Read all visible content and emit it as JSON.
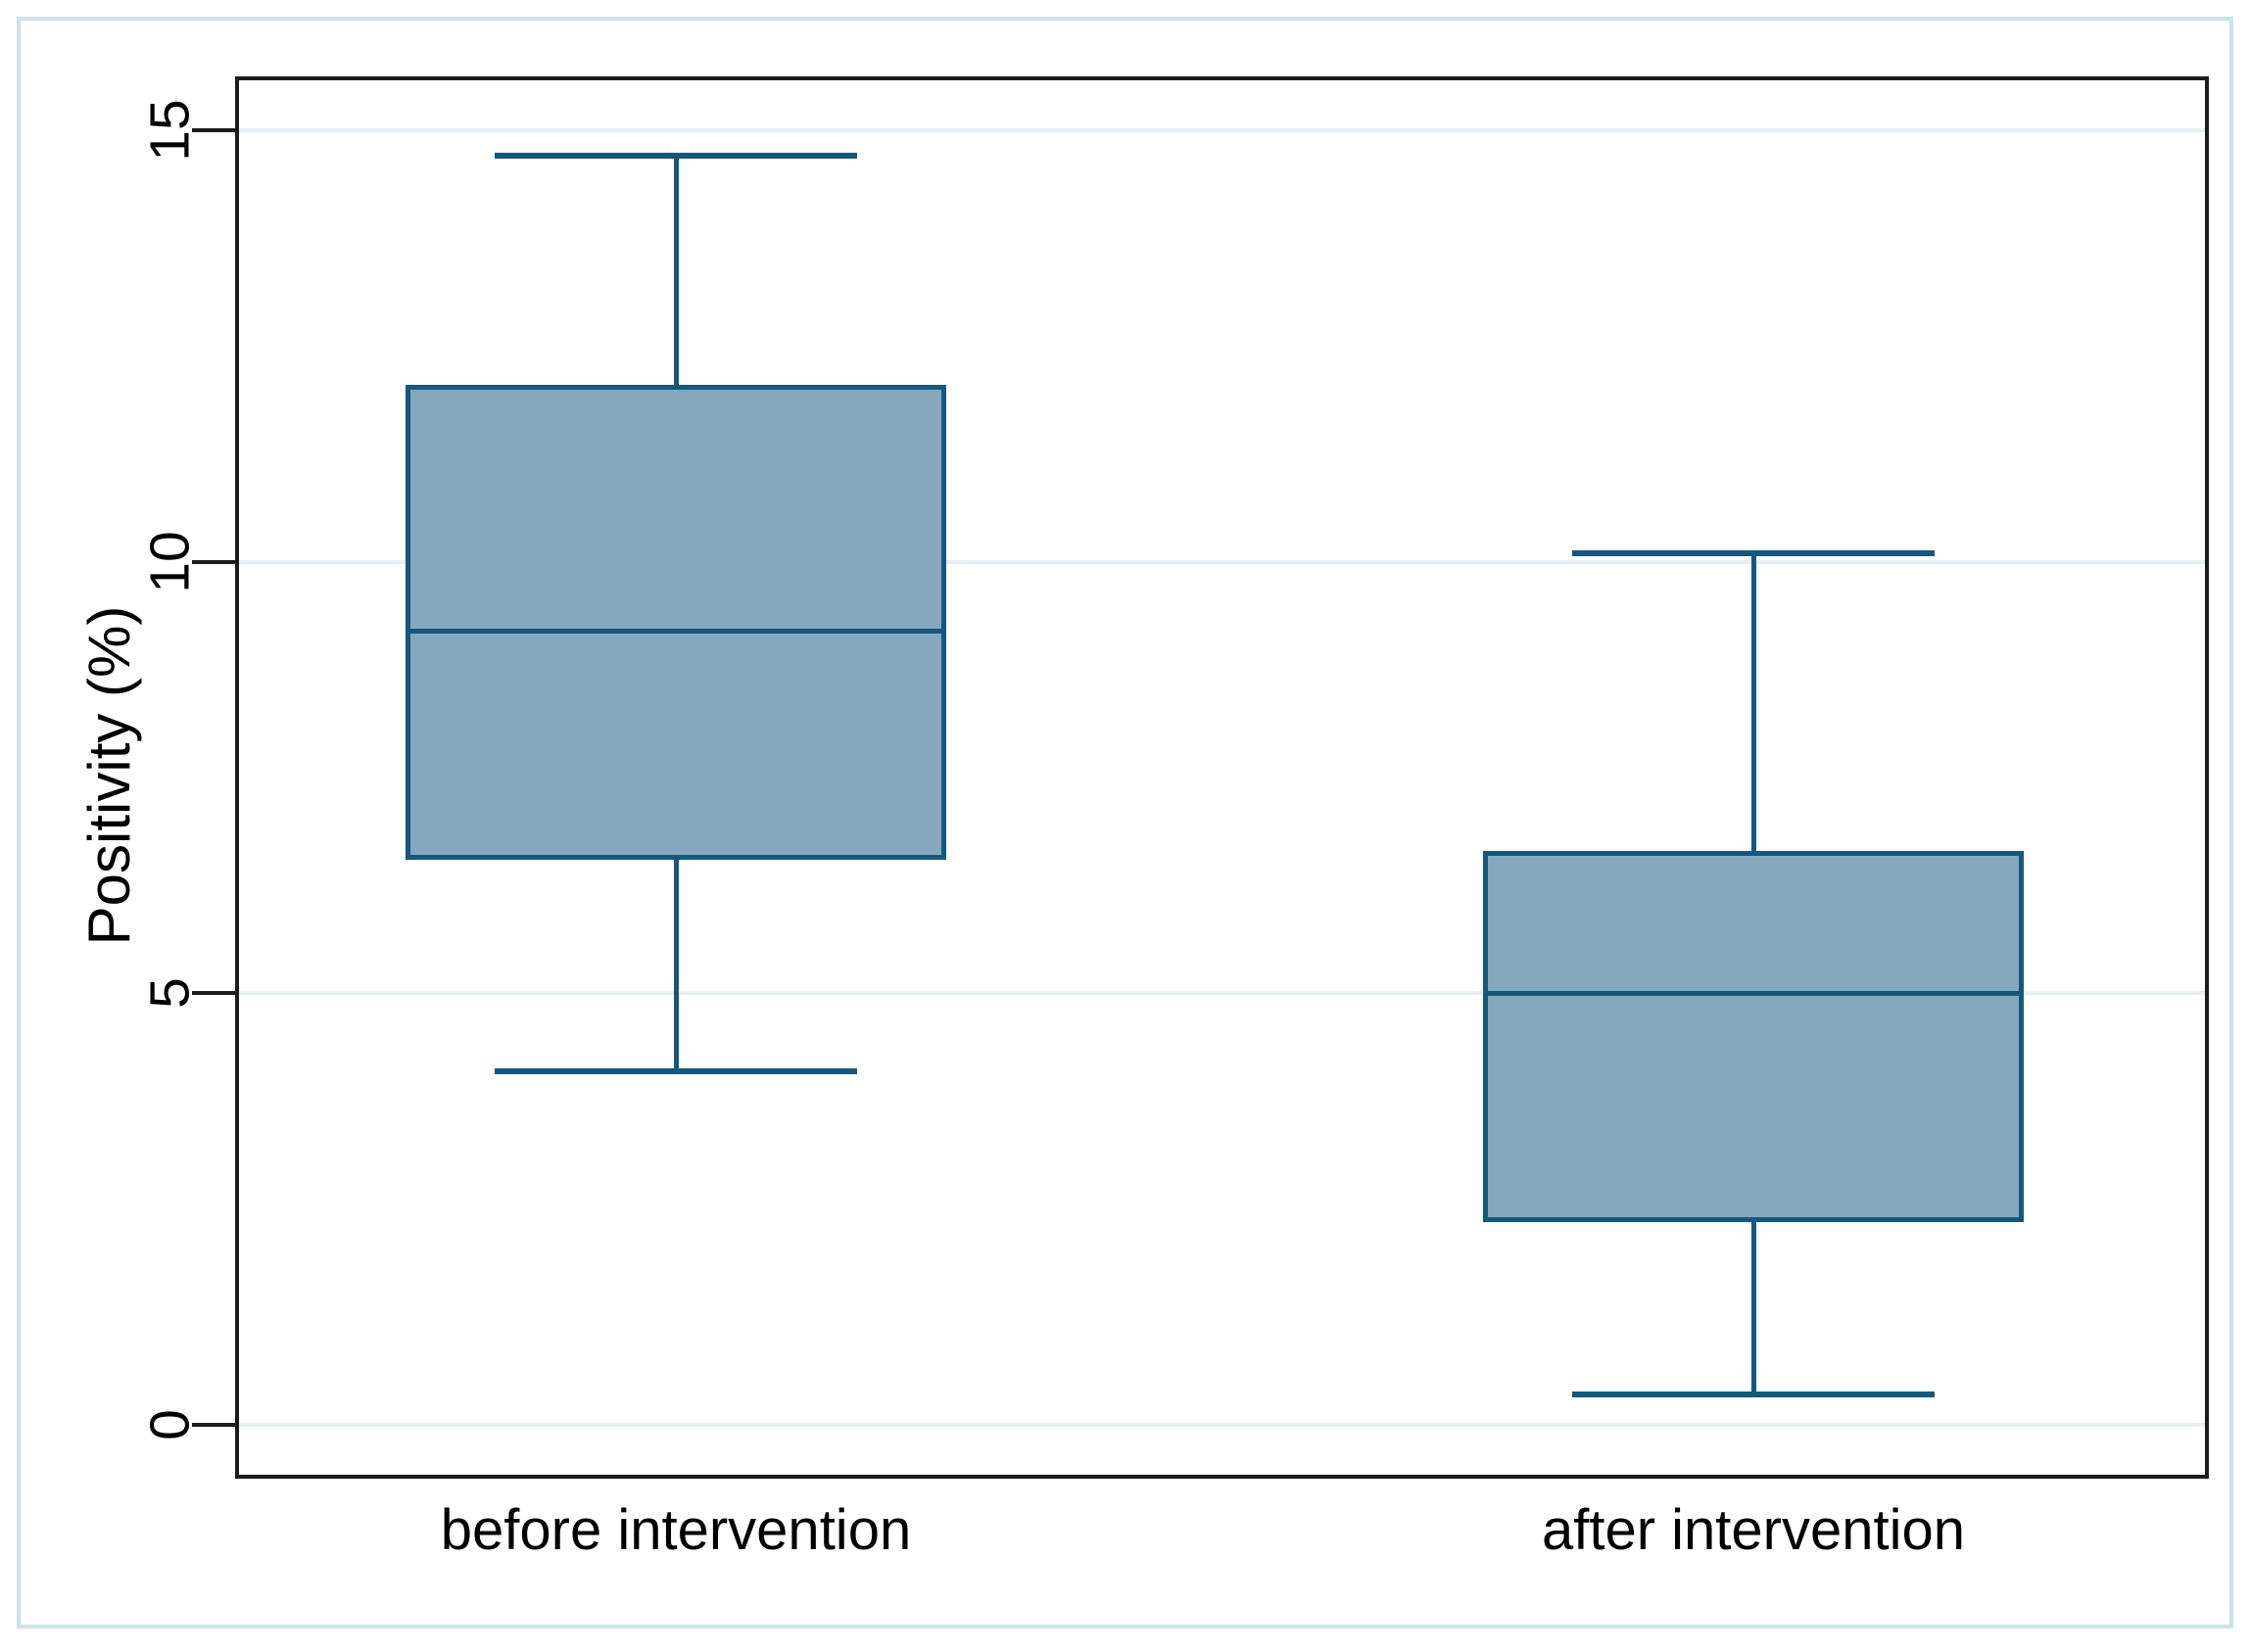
{
  "figure": {
    "background": "#ffffff",
    "frame_border_color": "#cfe2ea"
  },
  "colors": {
    "box_fill": "#85a8bc",
    "box_stroke": "#16577e",
    "gridline": "#e6eff4",
    "axis": "#1c1c1c",
    "text": "#000000"
  },
  "chart_data": {
    "type": "box",
    "title": "",
    "ylabel": "Positivity (%)",
    "xlabel": "",
    "categories": [
      "before intervention",
      "after intervention"
    ],
    "yticks": [
      0,
      5,
      10,
      15
    ],
    "ylim": [
      -0.6,
      15.6
    ],
    "grid": true,
    "legend": "none",
    "series": [
      {
        "name": "before intervention",
        "min": 4.1,
        "q1": 6.55,
        "median": 9.2,
        "q3": 12.05,
        "max": 14.7
      },
      {
        "name": "after intervention",
        "min": 0.35,
        "q1": 2.35,
        "median": 5.0,
        "q3": 6.65,
        "max": 10.1
      }
    ]
  }
}
